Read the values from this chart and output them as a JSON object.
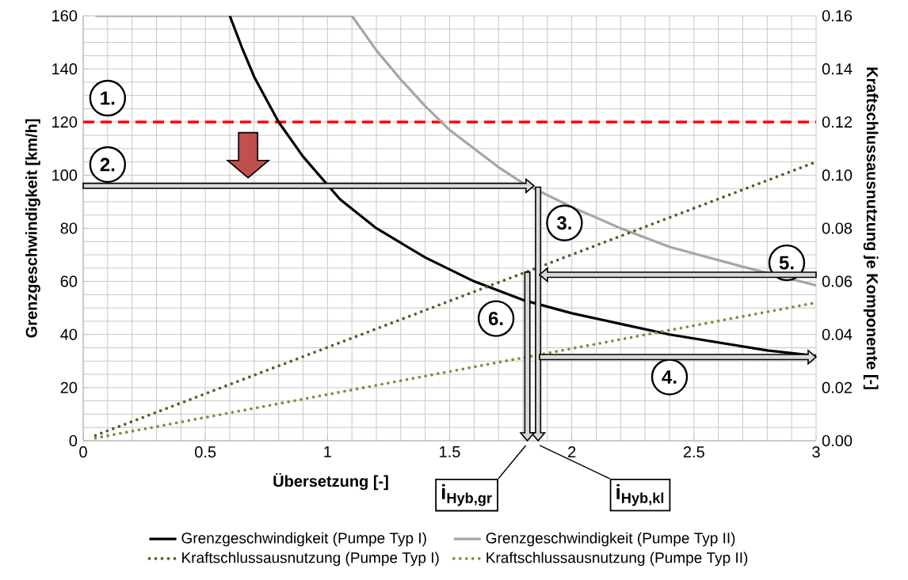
{
  "chart_data": {
    "type": "line",
    "xlabel": "Übersetzung [-]",
    "ylabel": "Grenzgeschwindigkeit [km/h]",
    "y2label": "Kraftschlussausnutzung je Komponente [-]",
    "xlim": [
      0,
      3
    ],
    "xticks": [
      0,
      0.5,
      1,
      1.5,
      2,
      2.5,
      3
    ],
    "ylim": [
      0,
      160
    ],
    "yticks": [
      0,
      20,
      40,
      60,
      80,
      100,
      120,
      140,
      160
    ],
    "y2lim": [
      0,
      0.16
    ],
    "y2ticks": [
      {
        "value": 0,
        "label": "0.00"
      },
      {
        "value": 0.02,
        "label": "0.02"
      },
      {
        "value": 0.04,
        "label": "0.04"
      },
      {
        "value": 0.06,
        "label": "0.06"
      },
      {
        "value": 0.08,
        "label": "0.08"
      },
      {
        "value": 0.1,
        "label": "0.10"
      },
      {
        "value": 0.12,
        "label": "0.12"
      },
      {
        "value": 0.14,
        "label": "0.14"
      },
      {
        "value": 0.16,
        "label": "0.16"
      }
    ],
    "grid": true,
    "legend": "bottom",
    "marker": "none",
    "ref_lines": [
      {
        "axis": "y",
        "value": 120,
        "color": "#ff0000",
        "line_style": "dashed"
      }
    ],
    "annotations": [
      "1.",
      "2.",
      "3.",
      "4.",
      "5.",
      "6.",
      "i$_{Hyb,gr}$",
      "i$_{Hyb,kl}$"
    ],
    "series": [
      {
        "name": "Grenzgeschwindigkeit (Pumpe Typ I)",
        "color": "#000000",
        "line_style": "solid",
        "x": [
          0.6,
          0.65,
          0.7,
          0.8,
          0.9,
          1.05,
          1.2,
          1.4,
          1.6,
          1.8,
          2.0,
          2.2,
          2.4,
          2.6,
          2.8,
          3.0
        ],
        "values": [
          160,
          148,
          137,
          120,
          107,
          91,
          80,
          69,
          60,
          53,
          48,
          44,
          40,
          37,
          34,
          32
        ]
      },
      {
        "name": "Grenzgeschwindigkeit (Pumpe Typ II)",
        "color": "#a6a6a6",
        "line_style": "solid",
        "x": [
          0.05,
          1.1,
          1.2,
          1.3,
          1.4,
          1.5,
          1.6,
          1.7,
          1.8,
          2.0,
          2.2,
          2.4,
          2.6,
          2.7,
          3.0
        ],
        "values": [
          160,
          160,
          147,
          136,
          126,
          117,
          110,
          103,
          97,
          88,
          80,
          73,
          68,
          65.5,
          58.5
        ]
      },
      {
        "name": "Kraftschlussausnutzung (Pumpe Typ I)",
        "color": "#4f6228",
        "line_style": "dotted",
        "axis": "y2",
        "x": [
          0.05,
          3.0
        ],
        "values": [
          0.002,
          0.105
        ]
      },
      {
        "name": "Kraftschlussausnutzung (Pumpe Typ II)",
        "color": "#77933c",
        "line_style": "dotted",
        "axis": "y2",
        "x": [
          0.05,
          3.0
        ],
        "values": [
          0.001,
          0.052
        ]
      }
    ]
  }
}
